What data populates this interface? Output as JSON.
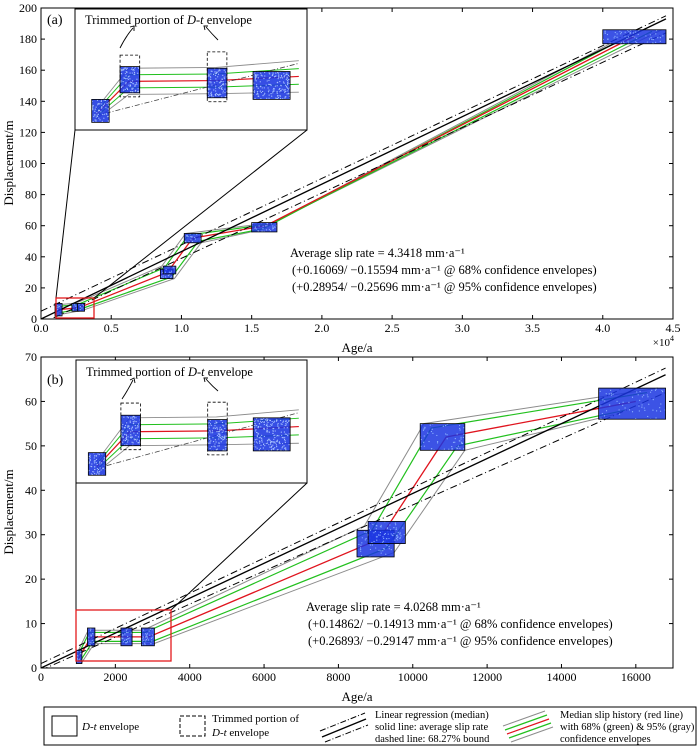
{
  "chart_data": [
    {
      "panel_label": "(a)",
      "type": "line",
      "ylabel": "Displacement/m",
      "xlabel": "Age/a",
      "x_exponent_label": "×10",
      "x_exponent_power": "4",
      "xlim": [
        0,
        45000
      ],
      "ylim": [
        0,
        200
      ],
      "xticks": [
        0,
        5000,
        10000,
        15000,
        20000,
        25000,
        30000,
        35000,
        40000,
        45000
      ],
      "xtick_labels": [
        "0.0",
        "0.5",
        "1.0",
        "1.5",
        "2.0",
        "2.5",
        "3.0",
        "3.5",
        "4.0",
        "4.5"
      ],
      "yticks": [
        0,
        20,
        40,
        60,
        80,
        100,
        120,
        140,
        160,
        180,
        200
      ],
      "ytick_labels": [
        "0",
        "20",
        "40",
        "60",
        "80",
        "100",
        "120",
        "140",
        "160",
        "180",
        "200"
      ],
      "envelopes": [
        {
          "x": [
            1000,
            1500
          ],
          "y": [
            2,
            10
          ]
        },
        {
          "x": [
            2200,
            2700
          ],
          "y": [
            5,
            10
          ]
        },
        {
          "x": [
            2600,
            3100
          ],
          "y": [
            5,
            10
          ]
        },
        {
          "x": [
            8500,
            9400
          ],
          "y": [
            26,
            32
          ]
        },
        {
          "x": [
            8700,
            9600
          ],
          "y": [
            29,
            34
          ]
        },
        {
          "x": [
            10200,
            11400
          ],
          "y": [
            49,
            55
          ]
        },
        {
          "x": [
            15000,
            16800
          ],
          "y": [
            56,
            62
          ]
        },
        {
          "x": [
            40000,
            44500
          ],
          "y": [
            177,
            186
          ]
        }
      ],
      "median_history": {
        "x": [
          1200,
          2400,
          2900,
          9000,
          10800,
          16000,
          42300
        ],
        "y": [
          6,
          7,
          8,
          30,
          52,
          60,
          182
        ]
      },
      "ci68_upper": {
        "x": [
          1100,
          2300,
          2800,
          8800,
          10500,
          16300,
          43500
        ],
        "y": [
          8,
          9,
          10,
          33,
          54,
          61,
          185
        ]
      },
      "ci68_lower": {
        "x": [
          1300,
          2500,
          3000,
          9300,
          11200,
          15800,
          41000
        ],
        "y": [
          4,
          6,
          7,
          27,
          50,
          58,
          178
        ]
      },
      "ci95_upper": {
        "x": [
          1000,
          2200,
          2700,
          8600,
          10300,
          16500,
          44200
        ],
        "y": [
          9,
          10,
          11,
          34,
          55,
          62,
          186
        ]
      },
      "ci95_lower": {
        "x": [
          1400,
          2600,
          3100,
          9500,
          11400,
          15500,
          40500
        ],
        "y": [
          3,
          5,
          6,
          26,
          49,
          57,
          177
        ]
      },
      "regression": {
        "x": [
          0,
          44500
        ],
        "y": [
          0,
          193
        ]
      },
      "regression_bound_upper": {
        "x": [
          0,
          44500
        ],
        "y": [
          5,
          195
        ]
      },
      "regression_bound_lower": {
        "x": [
          0,
          44500
        ],
        "y": [
          -3,
          184
        ]
      },
      "annotation_lines": [
        "Average slip rate = 4.3418 mm·a⁻¹",
        "(+0.16069/ −0.15594 mm·a⁻¹ @ 68% confidence envelopes)",
        "(+0.28954/ −0.25696 mm·a⁻¹ @ 95% confidence envelopes)"
      ],
      "inset_title": "Trimmed portion of ",
      "inset_title_italic": "D-t",
      "inset_title_tail": " envelope",
      "inset_source_range": {
        "x": [
          900,
          3500
        ],
        "y": [
          0,
          12
        ]
      }
    },
    {
      "panel_label": "(b)",
      "type": "line",
      "ylabel": "Displacement/m",
      "xlabel": "Age/a",
      "xlim": [
        0,
        17000
      ],
      "ylim": [
        0,
        70
      ],
      "xticks": [
        0,
        2000,
        4000,
        6000,
        8000,
        10000,
        12000,
        14000,
        16000
      ],
      "xtick_labels": [
        "0",
        "2000",
        "4000",
        "6000",
        "8000",
        "10000",
        "12000",
        "14000",
        "16000"
      ],
      "yticks": [
        0,
        10,
        20,
        30,
        40,
        50,
        60,
        70
      ],
      "ytick_labels": [
        "0",
        "10",
        "20",
        "30",
        "40",
        "50",
        "60",
        "70"
      ],
      "envelopes": [
        {
          "x": [
            950,
            1100
          ],
          "y": [
            1,
            4
          ]
        },
        {
          "x": [
            1250,
            1450
          ],
          "y": [
            5,
            9
          ]
        },
        {
          "x": [
            2150,
            2450
          ],
          "y": [
            5,
            9
          ]
        },
        {
          "x": [
            2700,
            3050
          ],
          "y": [
            5,
            9
          ]
        },
        {
          "x": [
            8500,
            9500
          ],
          "y": [
            25,
            31
          ]
        },
        {
          "x": [
            8800,
            9800
          ],
          "y": [
            28,
            33
          ]
        },
        {
          "x": [
            10200,
            11400
          ],
          "y": [
            49,
            55
          ]
        },
        {
          "x": [
            15000,
            16800
          ],
          "y": [
            56,
            63
          ]
        }
      ],
      "median_history": {
        "x": [
          1000,
          1350,
          2300,
          2900,
          9100,
          10900,
          16000
        ],
        "y": [
          2,
          7,
          7,
          7,
          29,
          52,
          60
        ]
      },
      "ci68_upper": {
        "x": [
          1000,
          1300,
          2200,
          2800,
          8900,
          10500,
          16300
        ],
        "y": [
          3,
          8,
          8,
          8,
          31,
          54,
          62
        ]
      },
      "ci68_lower": {
        "x": [
          1050,
          1400,
          2400,
          3000,
          9300,
          11200,
          15700
        ],
        "y": [
          1.5,
          6,
          6,
          6,
          27,
          50,
          58
        ]
      },
      "ci95_upper": {
        "x": [
          980,
          1270,
          2170,
          2750,
          8700,
          10300,
          16600
        ],
        "y": [
          3.5,
          8.5,
          8.5,
          8.5,
          32,
          55,
          63
        ]
      },
      "ci95_lower": {
        "x": [
          1080,
          1430,
          2430,
          3040,
          9500,
          11400,
          15400
        ],
        "y": [
          1,
          5.5,
          5.5,
          5.5,
          26,
          49,
          57
        ]
      },
      "regression": {
        "x": [
          0,
          16800
        ],
        "y": [
          0,
          66
        ]
      },
      "regression_bound_upper": {
        "x": [
          0,
          16800
        ],
        "y": [
          1,
          67.5
        ]
      },
      "regression_bound_lower": {
        "x": [
          0,
          16800
        ],
        "y": [
          -0.5,
          62
        ]
      },
      "annotation_lines": [
        "Average slip rate = 4.0268 mm·a⁻¹",
        "(+0.14862/ −0.14913 mm·a⁻¹ @ 68% confidence envelopes)",
        "(+0.26893/ −0.29147 mm·a⁻¹ @ 95% confidence envelopes)"
      ],
      "inset_title": "Trimmed portion of ",
      "inset_title_italic": "D-t",
      "inset_title_tail": " envelope",
      "inset_source_range": {
        "x": [
          300,
          3300
        ],
        "y": [
          0,
          12
        ]
      }
    }
  ],
  "legend": {
    "item1_italic": "D-t",
    "item1_text": " envelope",
    "item2_line1": "Trimmed portion of",
    "item2_line2_italic": "D-t",
    "item2_line2_text": " envelope",
    "item3_line1": "Linear regression (median)",
    "item3_line2": "solid line: average slip rate",
    "item3_line3": "dashed line: 68.27% bound",
    "item4_line1": "Median slip history (red line)",
    "item4_line2": "with 68% (green) & 95% (gray)",
    "item4_line3": "confidence envelopes"
  },
  "colors": {
    "median": "#e0141e",
    "ci68": "#22c01e",
    "ci95": "#8c8c8c",
    "points": "#1a2fd8",
    "highlight_box": "#e31a1c",
    "regression": "#000000"
  }
}
